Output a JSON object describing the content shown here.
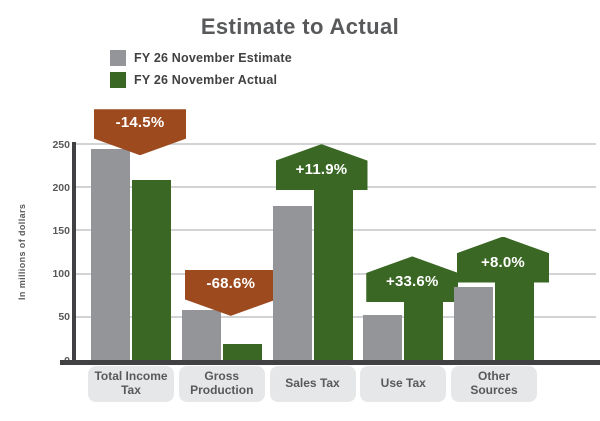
{
  "title": "Estimate to Actual",
  "legend": [
    {
      "label": "FY 26 November Estimate",
      "color": "#939598"
    },
    {
      "label": "FY 26 November Actual",
      "color": "#3A6824"
    }
  ],
  "y_axis": {
    "label": "In millions of dollars",
    "ticks": [
      250,
      200,
      150,
      100,
      50,
      0
    ]
  },
  "colors": {
    "estimate_bar": "#939598",
    "actual_bar": "#3A6824",
    "negative_callout": "#9C4A1E",
    "positive_callout": "#3A6824",
    "axis": "#414042",
    "gridline": "#D1D3D4",
    "text": "#58595B"
  },
  "chart_data": {
    "type": "bar",
    "title": "Estimate to Actual",
    "xlabel": "",
    "ylabel": "In millions of dollars",
    "ylim": [
      0,
      250
    ],
    "grid": true,
    "legend_position": "top-left",
    "categories": [
      "Total Income Tax",
      "Gross Production",
      "Sales Tax",
      "Use Tax",
      "Other Sources"
    ],
    "series": [
      {
        "name": "FY 26 November Estimate",
        "color": "#939598",
        "values": [
          244,
          58,
          178,
          52,
          85
        ]
      },
      {
        "name": "FY 26 November Actual",
        "color": "#3A6824",
        "values": [
          208,
          18,
          199,
          69,
          92
        ]
      }
    ],
    "annotations": [
      {
        "category": "Total Income Tax",
        "label": "-14.5%",
        "direction": "down",
        "color": "#9C4A1E"
      },
      {
        "category": "Gross Production",
        "label": "-68.6%",
        "direction": "down",
        "color": "#9C4A1E"
      },
      {
        "category": "Sales Tax",
        "label": "+11.9%",
        "direction": "up",
        "color": "#3A6824"
      },
      {
        "category": "Use Tax",
        "label": "+33.6%",
        "direction": "up",
        "color": "#3A6824"
      },
      {
        "category": "Other Sources",
        "label": "+8.0%",
        "direction": "up",
        "color": "#3A6824"
      }
    ]
  }
}
